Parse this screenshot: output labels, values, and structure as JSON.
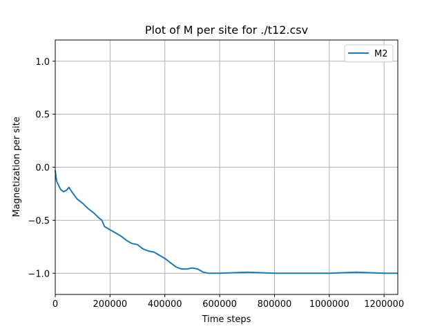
{
  "chart_data": {
    "type": "line",
    "title": "Plot of M per site for ./t12.csv",
    "xlabel": "Time steps",
    "ylabel": "Magnetization per site",
    "xlim": [
      0,
      1250000
    ],
    "ylim": [
      -1.2,
      1.2
    ],
    "xticks": [
      0,
      200000,
      400000,
      600000,
      800000,
      1000000,
      1200000
    ],
    "xtick_labels": [
      "0",
      "200000",
      "400000",
      "600000",
      "800000",
      "1000000",
      "1200000"
    ],
    "yticks": [
      -1.0,
      -0.5,
      0.0,
      0.5,
      1.0
    ],
    "ytick_labels": [
      "−1.0",
      "−0.5",
      "0.0",
      "0.5",
      "1.0"
    ],
    "grid": true,
    "legend_position": "top-right",
    "series": [
      {
        "name": "M2",
        "color": "#1f77b4",
        "x": [
          0,
          5000,
          10000,
          20000,
          30000,
          40000,
          50000,
          60000,
          80000,
          100000,
          120000,
          140000,
          160000,
          170000,
          180000,
          200000,
          220000,
          240000,
          260000,
          280000,
          300000,
          320000,
          340000,
          360000,
          380000,
          400000,
          420000,
          440000,
          460000,
          480000,
          500000,
          520000,
          540000,
          560000,
          600000,
          700000,
          800000,
          900000,
          1000000,
          1100000,
          1200000,
          1250000
        ],
        "y": [
          -0.03,
          -0.13,
          -0.16,
          -0.21,
          -0.23,
          -0.22,
          -0.19,
          -0.23,
          -0.3,
          -0.34,
          -0.39,
          -0.43,
          -0.48,
          -0.5,
          -0.56,
          -0.59,
          -0.62,
          -0.65,
          -0.69,
          -0.72,
          -0.73,
          -0.77,
          -0.79,
          -0.8,
          -0.83,
          -0.86,
          -0.9,
          -0.94,
          -0.96,
          -0.96,
          -0.95,
          -0.96,
          -0.99,
          -1.0,
          -1.0,
          -0.99,
          -1.0,
          -1.0,
          -1.0,
          -0.99,
          -1.0,
          -1.0
        ]
      }
    ]
  }
}
